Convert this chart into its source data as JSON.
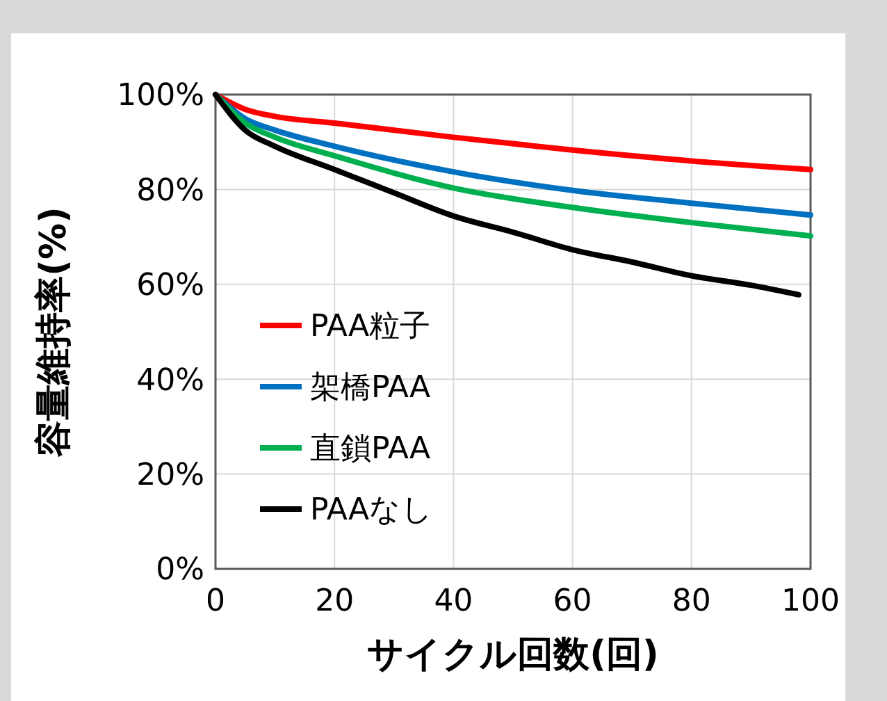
{
  "chart_data": {
    "type": "line",
    "xlabel": "サイクル回数(回)",
    "ylabel": "容量維持率(%)",
    "xlim": [
      0,
      100
    ],
    "xticks": [
      0,
      20,
      40,
      60,
      80,
      100
    ],
    "ylim": [
      0,
      100
    ],
    "yticks": [
      {
        "value": 0,
        "label": "0%"
      },
      {
        "value": 20,
        "label": "20%"
      },
      {
        "value": 40,
        "label": "40%"
      },
      {
        "value": 60,
        "label": "60%"
      },
      {
        "value": 80,
        "label": "80%"
      },
      {
        "value": 100,
        "label": "100%"
      }
    ],
    "grid": true,
    "legend": "bottom left",
    "marker": "none",
    "line_style": "solid",
    "series": [
      {
        "name": "PAA粒子",
        "color": "#ff0000",
        "x": [
          0,
          5,
          10,
          20,
          40,
          60,
          80,
          100
        ],
        "values": [
          100,
          96.9,
          95.4,
          94.0,
          91.0,
          88.3,
          86.0,
          84.2
        ]
      },
      {
        "name": "架橋PAA",
        "color": "#0070c0",
        "x": [
          0,
          5,
          10,
          20,
          40,
          60,
          80,
          100
        ],
        "values": [
          100,
          94.9,
          92.5,
          89.1,
          83.7,
          79.8,
          77.1,
          74.6
        ]
      },
      {
        "name": "直鎖PAA",
        "color": "#00b050",
        "x": [
          0,
          5,
          10,
          20,
          40,
          60,
          80,
          100
        ],
        "values": [
          100,
          94.0,
          91.0,
          87.1,
          80.3,
          76.2,
          73.0,
          70.2
        ]
      },
      {
        "name": "PAAなし",
        "color": "#000000",
        "x": [
          0,
          5,
          10,
          20,
          30,
          40,
          50,
          60,
          70,
          80,
          90,
          98
        ],
        "values": [
          100,
          92.5,
          89.1,
          84.2,
          79.3,
          74.4,
          71.0,
          67.3,
          64.7,
          61.8,
          59.8,
          57.8
        ]
      }
    ]
  }
}
